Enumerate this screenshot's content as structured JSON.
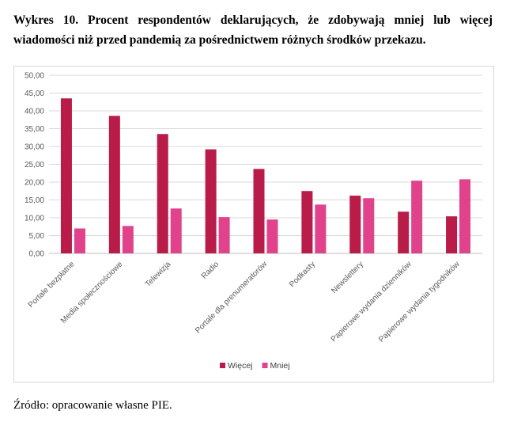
{
  "heading": "Wykres 10. Procent respondentów deklarujących, że zdobywają mniej lub więcej wiadomości niż przed pandemią za pośrednictwem różnych środków przekazu.",
  "source": "Źródło: opracowanie własne PIE.",
  "chart_data": {
    "type": "bar",
    "categories": [
      "Portale bezpłatne",
      "Media społecznościowe",
      "Telewizja",
      "Radio",
      "Portale dla prenumeratorów",
      "Podkasty",
      "Newslettery",
      "Papierowe wydania dzienników",
      "Papierowe wydania tygodników"
    ],
    "series": [
      {
        "name": "Więcej",
        "color": "#b91c48",
        "values": [
          43.5,
          38.6,
          33.5,
          29.2,
          23.7,
          17.5,
          16.2,
          11.7,
          10.4
        ]
      },
      {
        "name": "Mniej",
        "color": "#e0438b",
        "values": [
          7.0,
          7.7,
          12.6,
          10.2,
          9.5,
          13.7,
          15.5,
          20.4,
          20.8
        ]
      }
    ],
    "ylim": [
      0,
      50
    ],
    "yticks": [
      "0,00",
      "5,00",
      "10,00",
      "15,00",
      "20,00",
      "25,00",
      "30,00",
      "35,00",
      "40,00",
      "45,00",
      "50,00"
    ],
    "grid": true,
    "legend_position": "bottom"
  }
}
